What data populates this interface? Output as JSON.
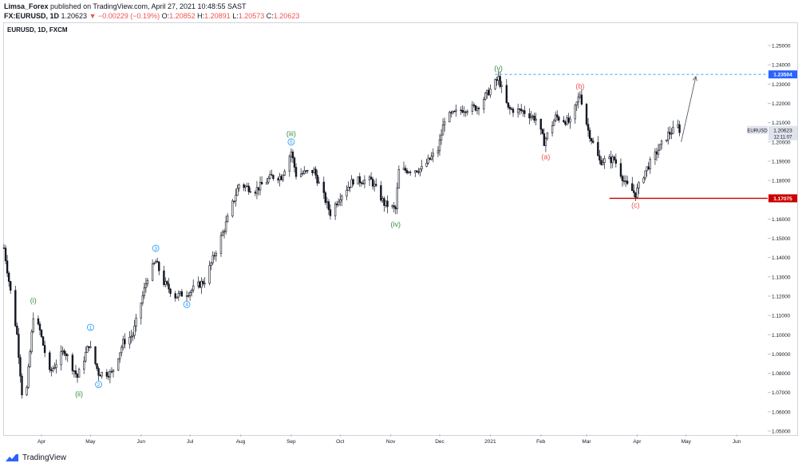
{
  "header": {
    "user": "Limsa_Forex",
    "published": "published on TradingView.com, April 27, 2021 10:48:55 SAST",
    "symbol_line": "FX:EURUSD, 1D",
    "last": "1.20623",
    "change": "▼ −0.00229 (−0.19%)",
    "open_label": "O:",
    "open": "1.20852",
    "high_label": "H:",
    "high": "1.20891",
    "low_label": "L:",
    "low": "1.20573",
    "close_label": "C:",
    "close": "1.20623"
  },
  "brand": "TradingView",
  "colors": {
    "candle": "#131722",
    "green_label": "#388e3c",
    "blue_label": "#2196f3",
    "red_label": "#ef5350",
    "support": "#cc0000",
    "target_line": "#2196f3",
    "price_tag": "#131722"
  },
  "chart_data": {
    "type": "candlestick",
    "title": "EURUSD, 1D, FXCM",
    "ylim": [
      1.05,
      1.255
    ],
    "yticks": [
      "1.25000",
      "1.24000",
      "1.23000",
      "1.22000",
      "1.21000",
      "1.20000",
      "1.19000",
      "1.18000",
      "1.17000",
      "1.16000",
      "1.15000",
      "1.14000",
      "1.13000",
      "1.12000",
      "1.11000",
      "1.10000",
      "1.09000",
      "1.08000",
      "1.07000",
      "1.06000",
      "1.05000"
    ],
    "x_range": [
      "2020-03-09",
      "2021-06-20"
    ],
    "xticks": [
      {
        "label": "Apr",
        "date": "2020-04-01"
      },
      {
        "label": "May",
        "date": "2020-05-01"
      },
      {
        "label": "Jun",
        "date": "2020-06-01"
      },
      {
        "label": "Jul",
        "date": "2020-07-01"
      },
      {
        "label": "Aug",
        "date": "2020-08-01"
      },
      {
        "label": "Sep",
        "date": "2020-09-01"
      },
      {
        "label": "Oct",
        "date": "2020-10-01"
      },
      {
        "label": "Nov",
        "date": "2020-11-01"
      },
      {
        "label": "Dec",
        "date": "2020-12-01"
      },
      {
        "label": "2021",
        "date": "2021-01-01"
      },
      {
        "label": "Feb",
        "date": "2021-02-01"
      },
      {
        "label": "Mar",
        "date": "2021-03-01"
      },
      {
        "label": "Apr",
        "date": "2021-04-01"
      },
      {
        "label": "May",
        "date": "2021-05-01"
      },
      {
        "label": "Jun",
        "date": "2021-06-01"
      }
    ],
    "close_path": [
      [
        "2020-03-09",
        1.145
      ],
      [
        "2020-03-12",
        1.128
      ],
      [
        "2020-03-17",
        1.1
      ],
      [
        "2020-03-20",
        1.07
      ],
      [
        "2020-03-23",
        1.072
      ],
      [
        "2020-03-27",
        1.11
      ],
      [
        "2020-03-31",
        1.102
      ],
      [
        "2020-04-06",
        1.08
      ],
      [
        "2020-04-15",
        1.092
      ],
      [
        "2020-04-23",
        1.078
      ],
      [
        "2020-04-30",
        1.095
      ],
      [
        "2020-05-06",
        1.08
      ],
      [
        "2020-05-14",
        1.08
      ],
      [
        "2020-05-21",
        1.096
      ],
      [
        "2020-05-27",
        1.1
      ],
      [
        "2020-06-05",
        1.13
      ],
      [
        "2020-06-10",
        1.138
      ],
      [
        "2020-06-15",
        1.127
      ],
      [
        "2020-06-22",
        1.12
      ],
      [
        "2020-06-30",
        1.122
      ],
      [
        "2020-07-10",
        1.128
      ],
      [
        "2020-07-22",
        1.155
      ],
      [
        "2020-07-31",
        1.178
      ],
      [
        "2020-08-10",
        1.175
      ],
      [
        "2020-08-20",
        1.182
      ],
      [
        "2020-08-26",
        1.182
      ],
      [
        "2020-09-01",
        1.195
      ],
      [
        "2020-09-04",
        1.183
      ],
      [
        "2020-09-15",
        1.185
      ],
      [
        "2020-09-25",
        1.163
      ],
      [
        "2020-10-01",
        1.172
      ],
      [
        "2020-10-09",
        1.18
      ],
      [
        "2020-10-20",
        1.18
      ],
      [
        "2020-10-28",
        1.168
      ],
      [
        "2020-11-04",
        1.165
      ],
      [
        "2020-11-06",
        1.185
      ],
      [
        "2020-11-20",
        1.186
      ],
      [
        "2020-11-30",
        1.196
      ],
      [
        "2020-12-04",
        1.212
      ],
      [
        "2020-12-15",
        1.217
      ],
      [
        "2020-12-24",
        1.218
      ],
      [
        "2021-01-06",
        1.233
      ],
      [
        "2021-01-12",
        1.217
      ],
      [
        "2021-01-21",
        1.216
      ],
      [
        "2021-01-29",
        1.212
      ],
      [
        "2021-02-03",
        1.2
      ],
      [
        "2021-02-10",
        1.213
      ],
      [
        "2021-02-19",
        1.21
      ],
      [
        "2021-02-25",
        1.225
      ],
      [
        "2021-03-02",
        1.206
      ],
      [
        "2021-03-09",
        1.19
      ],
      [
        "2021-03-18",
        1.191
      ],
      [
        "2021-03-25",
        1.178
      ],
      [
        "2021-03-31",
        1.173
      ],
      [
        "2021-04-06",
        1.185
      ],
      [
        "2021-04-14",
        1.196
      ],
      [
        "2021-04-20",
        1.204
      ],
      [
        "2021-04-26",
        1.208
      ],
      [
        "2021-04-27",
        1.20623
      ]
    ],
    "current_price": {
      "value": 1.20623,
      "label": "EURUSD",
      "price": "1.20623",
      "countdown": "12:11:07"
    },
    "target_level": {
      "value": 1.23504,
      "label": "1.23504",
      "from": "2021-01-04",
      "to": "2021-06-20"
    },
    "support_level": {
      "value": 1.17075,
      "label": "1.17075",
      "from": "2021-03-15",
      "to": "2021-06-20"
    },
    "arrow": {
      "from": [
        "2021-04-28",
        1.2
      ],
      "to": [
        "2021-05-07",
        1.234
      ]
    },
    "wave_labels": [
      {
        "text": "(i)",
        "date": "2020-03-27",
        "price": 1.1145,
        "color": "green",
        "pos": "above"
      },
      {
        "text": "(ii)",
        "date": "2020-04-24",
        "price": 1.0725,
        "color": "green",
        "pos": "below"
      },
      {
        "text": "1",
        "date": "2020-05-01",
        "price": 1.1005,
        "color": "blue",
        "pos": "above",
        "circle": true
      },
      {
        "text": "2",
        "date": "2020-05-06",
        "price": 1.0775,
        "color": "blue",
        "pos": "below",
        "circle": true
      },
      {
        "text": "3",
        "date": "2020-06-10",
        "price": 1.1415,
        "color": "blue",
        "pos": "above",
        "circle": true
      },
      {
        "text": "4",
        "date": "2020-06-29",
        "price": 1.119,
        "color": "blue",
        "pos": "below",
        "circle": true
      },
      {
        "text": "(iii)",
        "date": "2020-09-01",
        "price": 1.201,
        "color": "green",
        "pos": "above"
      },
      {
        "text": "5",
        "date": "2020-09-01",
        "price": 1.2,
        "color": "blue",
        "pos": "inline",
        "circle": true
      },
      {
        "text": "(iv)",
        "date": "2020-11-04",
        "price": 1.1605,
        "color": "green",
        "pos": "below"
      },
      {
        "text": "(v)",
        "date": "2021-01-06",
        "price": 1.235,
        "color": "green",
        "pos": "above"
      },
      {
        "text": "(a)",
        "date": "2021-02-04",
        "price": 1.1955,
        "color": "red",
        "pos": "below"
      },
      {
        "text": "(b)",
        "date": "2021-02-25",
        "price": 1.2255,
        "color": "red",
        "pos": "above"
      },
      {
        "text": "(c)",
        "date": "2021-03-31",
        "price": 1.1705,
        "color": "red",
        "pos": "below"
      }
    ]
  }
}
